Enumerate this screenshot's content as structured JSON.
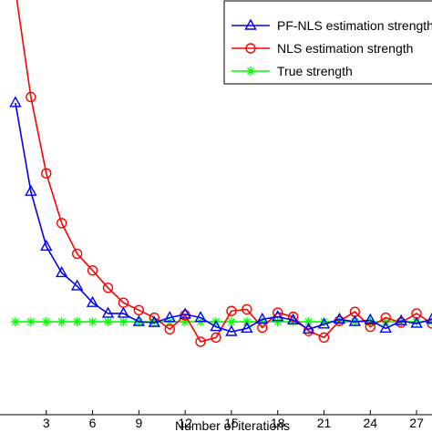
{
  "chart_data": {
    "type": "line",
    "xlabel": "Number of iterations",
    "ylabel": "",
    "title": "",
    "xlim": [
      0,
      28
    ],
    "ylim": [
      0,
      1
    ],
    "x_ticks": [
      3,
      6,
      9,
      12,
      15,
      18,
      21,
      24,
      27
    ],
    "x_tick_labels": [
      "3",
      "6",
      "9",
      "12",
      "15",
      "18",
      "21",
      "24",
      "27"
    ],
    "grid": false,
    "legend_position": "top-right",
    "x": [
      1,
      2,
      3,
      4,
      5,
      6,
      7,
      8,
      9,
      10,
      11,
      12,
      13,
      14,
      15,
      16,
      17,
      18,
      19,
      20,
      21,
      22,
      23,
      24,
      25,
      26,
      27,
      28
    ],
    "series": [
      {
        "name": "PF-NLS estimation strength",
        "color": "#0000ff",
        "marker": "triangle",
        "values": [
          0.752,
          0.538,
          0.406,
          0.342,
          0.31,
          0.27,
          0.244,
          0.244,
          0.224,
          0.222,
          0.234,
          0.242,
          0.234,
          0.212,
          0.2,
          0.208,
          0.23,
          0.236,
          0.228,
          0.206,
          0.218,
          0.23,
          0.224,
          0.228,
          0.208,
          0.226,
          0.22,
          0.23
        ]
      },
      {
        "name": "NLS estimation strength",
        "color": "#ff0000",
        "marker": "circle",
        "values": [
          1.024,
          0.766,
          0.582,
          0.462,
          0.388,
          0.348,
          0.306,
          0.27,
          0.252,
          0.234,
          0.206,
          0.24,
          0.176,
          0.186,
          0.25,
          0.254,
          0.21,
          0.246,
          0.236,
          0.202,
          0.186,
          0.226,
          0.248,
          0.212,
          0.234,
          0.222,
          0.244,
          0.22
        ]
      },
      {
        "name": "True strength",
        "color": "#00ff00",
        "marker": "star",
        "values": [
          0.224,
          0.224,
          0.224,
          0.224,
          0.224,
          0.224,
          0.224,
          0.224,
          0.224,
          0.224,
          0.224,
          0.224,
          0.224,
          0.224,
          0.224,
          0.224,
          0.224,
          0.224,
          0.224,
          0.224,
          0.224,
          0.224,
          0.224,
          0.224,
          0.224,
          0.224,
          0.224,
          0.224
        ]
      }
    ]
  }
}
